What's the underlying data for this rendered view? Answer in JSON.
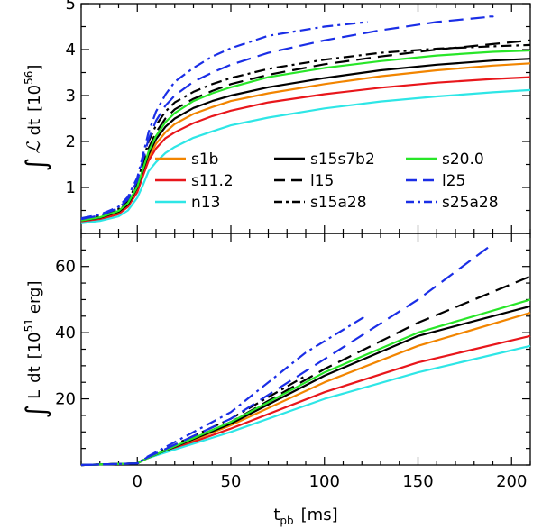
{
  "chart_data": [
    {
      "panel": "top",
      "type": "line",
      "ylabel_parts": {
        "integral": "∫",
        "script": "ℒ",
        "dt": "dt",
        "unit_open": "[10",
        "unit_exp": "56",
        "unit_close": "]"
      },
      "xlim": [
        -30,
        210
      ],
      "ylim": [
        0,
        5
      ],
      "yticks": [
        1,
        2,
        3,
        4,
        5
      ],
      "xticks": [
        0,
        50,
        100,
        150,
        200
      ],
      "x": [
        -30,
        -20,
        -10,
        -5,
        0,
        3,
        6,
        10,
        15,
        20,
        30,
        40,
        50,
        70,
        100,
        130,
        160,
        190,
        210
      ],
      "legend": {
        "placement": "inside-lower",
        "columns": 3
      },
      "series": [
        {
          "name": "s1b",
          "color": "#f28500",
          "dash": "solid",
          "values": [
            0.27,
            0.33,
            0.45,
            0.62,
            0.95,
            1.3,
            1.65,
            1.95,
            2.2,
            2.38,
            2.6,
            2.75,
            2.88,
            3.05,
            3.25,
            3.42,
            3.55,
            3.65,
            3.7
          ]
        },
        {
          "name": "s11.2",
          "color": "#e8161b",
          "dash": "solid",
          "values": [
            0.25,
            0.3,
            0.42,
            0.58,
            0.9,
            1.25,
            1.58,
            1.85,
            2.07,
            2.2,
            2.4,
            2.55,
            2.67,
            2.85,
            3.03,
            3.17,
            3.28,
            3.36,
            3.4
          ]
        },
        {
          "name": "n13",
          "color": "#2ee6e6",
          "dash": "solid",
          "values": [
            0.22,
            0.27,
            0.37,
            0.5,
            0.78,
            1.05,
            1.35,
            1.55,
            1.75,
            1.88,
            2.08,
            2.22,
            2.35,
            2.52,
            2.72,
            2.87,
            2.98,
            3.07,
            3.12
          ]
        },
        {
          "name": "s15s7b2",
          "color": "#000000",
          "dash": "solid",
          "values": [
            0.28,
            0.34,
            0.47,
            0.63,
            1.0,
            1.37,
            1.72,
            2.05,
            2.32,
            2.5,
            2.73,
            2.88,
            3.0,
            3.18,
            3.38,
            3.55,
            3.67,
            3.76,
            3.8
          ]
        },
        {
          "name": "l15",
          "color": "#000000",
          "dash": "longdash",
          "values": [
            0.29,
            0.36,
            0.5,
            0.68,
            1.05,
            1.45,
            1.85,
            2.2,
            2.5,
            2.7,
            2.93,
            3.1,
            3.25,
            3.45,
            3.68,
            3.85,
            4.0,
            4.12,
            4.2
          ]
        },
        {
          "name": "s15a28",
          "color": "#000000",
          "dash": "dashdot",
          "values": [
            0.3,
            0.38,
            0.53,
            0.72,
            1.1,
            1.55,
            2.0,
            2.35,
            2.65,
            2.85,
            3.08,
            3.25,
            3.38,
            3.58,
            3.78,
            3.93,
            4.02,
            4.07,
            4.1
          ]
        },
        {
          "name": "s20.0",
          "color": "#28e628",
          "dash": "solid",
          "values": [
            0.28,
            0.35,
            0.49,
            0.66,
            1.02,
            1.4,
            1.78,
            2.12,
            2.42,
            2.62,
            2.88,
            3.05,
            3.18,
            3.4,
            3.6,
            3.75,
            3.87,
            3.95,
            3.98
          ]
        },
        {
          "name": "l25",
          "color": "#1a2ee6",
          "dash": "longdash",
          "values": [
            0.31,
            0.39,
            0.55,
            0.75,
            1.15,
            1.6,
            2.05,
            2.45,
            2.78,
            3.0,
            3.3,
            3.5,
            3.67,
            3.93,
            4.2,
            4.42,
            4.6,
            4.72,
            null
          ]
        },
        {
          "name": "s25a28",
          "color": "#1a2ee6",
          "dash": "dashdot",
          "values": [
            0.33,
            0.41,
            0.58,
            0.8,
            1.22,
            1.7,
            2.2,
            2.65,
            3.02,
            3.3,
            3.6,
            3.85,
            4.03,
            4.3,
            4.5,
            null,
            null,
            null,
            null
          ]
        }
      ],
      "series_x_end": {
        "l25": 188,
        "s25a28": 123
      },
      "series_last_values": {
        "l25": 4.72,
        "s25a28": 4.6,
        "s15a28": 4.1
      }
    },
    {
      "panel": "bottom",
      "type": "line",
      "ylabel_parts": {
        "integral": "∫",
        "L": "L",
        "dt": "dt",
        "unit_open": "[10",
        "unit_exp": "51",
        "unit_close": "erg]"
      },
      "xlabel_parts": {
        "t": "t",
        "sub": "pb",
        "unit": "[ms]"
      },
      "xlim": [
        -30,
        210
      ],
      "ylim": [
        0,
        70
      ],
      "yticks": [
        20,
        40,
        60
      ],
      "xticks": [
        -30,
        0,
        50,
        100,
        150,
        200
      ],
      "x_tick_labels": [
        "",
        "0",
        "50",
        "100",
        "150",
        "200"
      ],
      "series": [
        {
          "name": "s1b",
          "color": "#f28500",
          "dash": "solid",
          "points": [
            [
              -30,
              0
            ],
            [
              0,
              0.5
            ],
            [
              5,
              2
            ],
            [
              50,
              12
            ],
            [
              100,
              25
            ],
            [
              150,
              36
            ],
            [
              210,
              46
            ]
          ]
        },
        {
          "name": "s11.2",
          "color": "#e8161b",
          "dash": "solid",
          "points": [
            [
              -30,
              0
            ],
            [
              0,
              0.5
            ],
            [
              5,
              2
            ],
            [
              50,
              11
            ],
            [
              100,
              22
            ],
            [
              150,
              31
            ],
            [
              210,
              39
            ]
          ]
        },
        {
          "name": "n13",
          "color": "#2ee6e6",
          "dash": "solid",
          "points": [
            [
              -30,
              0
            ],
            [
              0,
              0.5
            ],
            [
              5,
              2
            ],
            [
              50,
              10
            ],
            [
              100,
              20
            ],
            [
              150,
              28
            ],
            [
              210,
              36
            ]
          ]
        },
        {
          "name": "s15s7b2",
          "color": "#000000",
          "dash": "solid",
          "points": [
            [
              -30,
              0
            ],
            [
              0,
              0.5
            ],
            [
              5,
              2
            ],
            [
              50,
              12.5
            ],
            [
              100,
              27
            ],
            [
              150,
              39
            ],
            [
              210,
              48
            ]
          ]
        },
        {
          "name": "l15",
          "color": "#000000",
          "dash": "longdash",
          "points": [
            [
              -30,
              0
            ],
            [
              0,
              0.5
            ],
            [
              5,
              2
            ],
            [
              50,
              13
            ],
            [
              100,
              29
            ],
            [
              150,
              43
            ],
            [
              210,
              57
            ]
          ]
        },
        {
          "name": "s15a28",
          "color": "#000000",
          "dash": "dashdot",
          "points": [
            [
              -30,
              0
            ],
            [
              0,
              0.5
            ],
            [
              5,
              2.2
            ],
            [
              50,
              14
            ],
            [
              90,
              27
            ]
          ]
        },
        {
          "name": "s20.0",
          "color": "#28e628",
          "dash": "solid",
          "points": [
            [
              -30,
              0
            ],
            [
              0,
              0.5
            ],
            [
              5,
              2
            ],
            [
              50,
              13
            ],
            [
              100,
              28
            ],
            [
              150,
              40
            ],
            [
              210,
              50
            ]
          ]
        },
        {
          "name": "l25",
          "color": "#1a2ee6",
          "dash": "longdash",
          "points": [
            [
              -30,
              0
            ],
            [
              0,
              0.5
            ],
            [
              5,
              2.2
            ],
            [
              50,
              14
            ],
            [
              100,
              32
            ],
            [
              150,
              50
            ],
            [
              188,
              66
            ]
          ]
        },
        {
          "name": "s25a28",
          "color": "#1a2ee6",
          "dash": "dashdot",
          "points": [
            [
              -30,
              0
            ],
            [
              0,
              0.5
            ],
            [
              5,
              2.4
            ],
            [
              50,
              16
            ],
            [
              90,
              34
            ],
            [
              122,
              45
            ]
          ]
        }
      ]
    }
  ]
}
